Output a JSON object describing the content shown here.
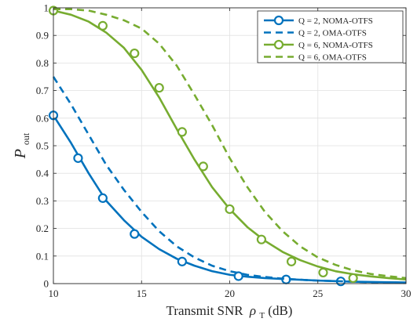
{
  "chart_data": {
    "type": "line",
    "title": "",
    "xlabel": "Transmit SNR",
    "xlabel_symbol": "ρ",
    "xlabel_subscript": "T",
    "xlabel_unit": "(dB)",
    "ylabel": "P",
    "ylabel_subscript": "out",
    "xlim": [
      10,
      30
    ],
    "ylim": [
      0,
      1
    ],
    "xticks": [
      10,
      15,
      20,
      25,
      30
    ],
    "yticks": [
      0,
      0.1,
      0.2,
      0.3,
      0.4,
      0.5,
      0.6,
      0.7,
      0.8,
      0.9,
      1
    ],
    "grid": true,
    "legend_position": "top-right",
    "series": [
      {
        "name": "Q = 2, NOMA-OTFS",
        "color": "#0072BD",
        "style": "solid",
        "marker": "circle",
        "x": [
          10,
          11,
          12,
          13,
          14,
          15,
          16,
          17,
          18,
          19,
          20,
          21,
          22,
          23,
          24,
          25,
          26,
          27,
          28,
          29,
          30
        ],
        "y": [
          0.61,
          0.51,
          0.4,
          0.3,
          0.23,
          0.17,
          0.125,
          0.09,
          0.065,
          0.045,
          0.032,
          0.025,
          0.02,
          0.017,
          0.014,
          0.011,
          0.009,
          0.007,
          0.006,
          0.005,
          0.004
        ],
        "marker_x": [
          10,
          11.4,
          12.8,
          14.6,
          17.3,
          20.5,
          23.2,
          26.3
        ],
        "marker_y": [
          0.61,
          0.455,
          0.31,
          0.18,
          0.08,
          0.027,
          0.015,
          0.008
        ]
      },
      {
        "name": "Q = 2, OMA-OTFS",
        "color": "#0072BD",
        "style": "dashed",
        "marker": "none",
        "x": [
          10,
          11,
          12,
          13,
          14,
          15,
          16,
          17,
          18,
          19,
          20,
          21,
          22,
          23,
          24,
          25,
          26,
          27,
          28,
          29,
          30
        ],
        "y": [
          0.75,
          0.65,
          0.54,
          0.43,
          0.34,
          0.26,
          0.19,
          0.135,
          0.095,
          0.065,
          0.045,
          0.032,
          0.024,
          0.018,
          0.014,
          0.011,
          0.009,
          0.007,
          0.005,
          0.004,
          0.003
        ]
      },
      {
        "name": "Q = 6, NOMA-OTFS",
        "color": "#77AC30",
        "style": "solid",
        "marker": "circle",
        "x": [
          10,
          11,
          12,
          13,
          14,
          15,
          16,
          17,
          18,
          19,
          20,
          21,
          22,
          23,
          24,
          25,
          26,
          27,
          28,
          29,
          30
        ],
        "y": [
          0.99,
          0.975,
          0.95,
          0.91,
          0.855,
          0.775,
          0.675,
          0.56,
          0.45,
          0.35,
          0.27,
          0.205,
          0.155,
          0.115,
          0.085,
          0.062,
          0.045,
          0.034,
          0.026,
          0.02,
          0.015
        ],
        "marker_x": [
          10,
          12.8,
          14.6,
          16.0,
          17.3,
          18.5,
          20.0,
          21.8,
          23.5,
          25.3,
          27.0
        ],
        "marker_y": [
          0.99,
          0.935,
          0.835,
          0.71,
          0.55,
          0.425,
          0.27,
          0.16,
          0.08,
          0.04,
          0.02
        ]
      },
      {
        "name": "Q = 6, OMA-OTFS",
        "color": "#77AC30",
        "style": "dashed",
        "marker": "none",
        "x": [
          10,
          11,
          12,
          13,
          14,
          15,
          16,
          17,
          18,
          19,
          20,
          21,
          22,
          23,
          24,
          25,
          26,
          27,
          28,
          29,
          30
        ],
        "y": [
          0.995,
          0.995,
          0.99,
          0.975,
          0.955,
          0.925,
          0.87,
          0.79,
          0.685,
          0.575,
          0.455,
          0.35,
          0.26,
          0.19,
          0.135,
          0.095,
          0.068,
          0.048,
          0.035,
          0.027,
          0.02
        ]
      }
    ]
  }
}
